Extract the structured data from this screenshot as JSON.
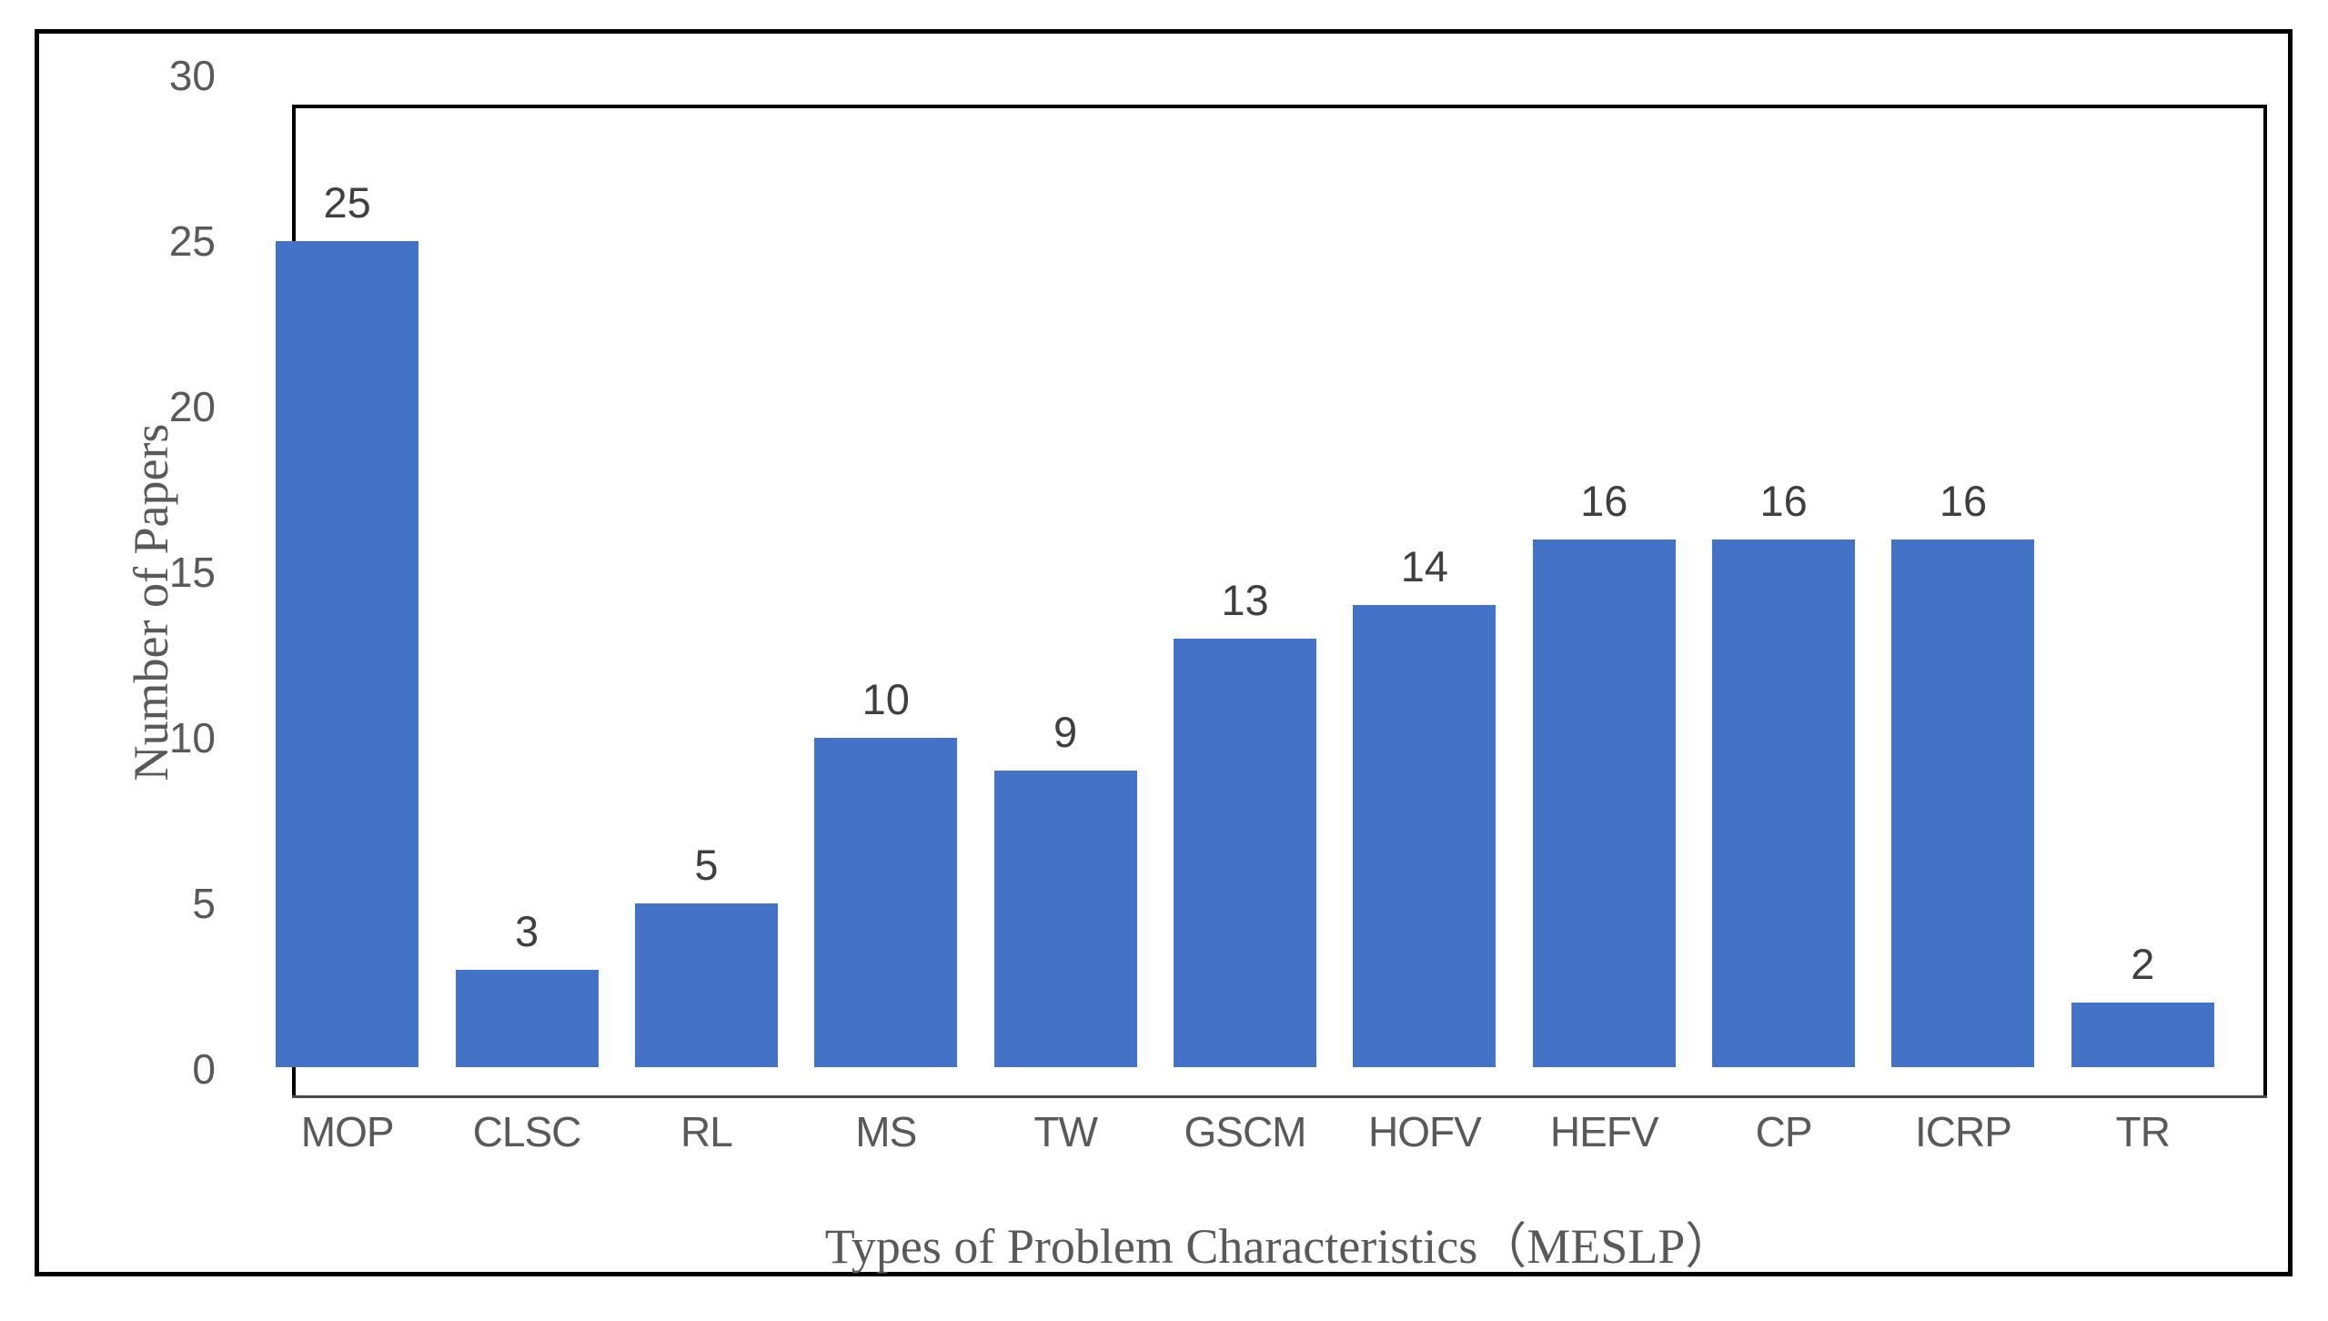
{
  "chart_data": {
    "type": "bar",
    "categories": [
      "MOP",
      "CLSC",
      "RL",
      "MS",
      "TW",
      "GSCM",
      "HOFV",
      "HEFV",
      "CP",
      "ICRP",
      "TR"
    ],
    "values": [
      25,
      3,
      5,
      10,
      9,
      13,
      14,
      16,
      16,
      16,
      2
    ],
    "data_labels": [
      "25",
      "3",
      "5",
      "10",
      "9",
      "13",
      "14",
      "16",
      "16",
      "16",
      "2"
    ],
    "title": "",
    "xlabel": "Types of Problem Characteristics（MESLP）",
    "ylabel": "Number of Papers",
    "ylim": [
      0,
      30
    ],
    "yticks": [
      "0",
      "5",
      "10",
      "15",
      "20",
      "25",
      "30"
    ],
    "grid": false,
    "legend": false,
    "bar_color": "#4472C7",
    "tick_text_color": "#595959",
    "data_label_color": "#3f3f3f",
    "axis_line_color": "#000000",
    "baseline_color": "#4a4a4a",
    "background_color": "#ffffff"
  }
}
